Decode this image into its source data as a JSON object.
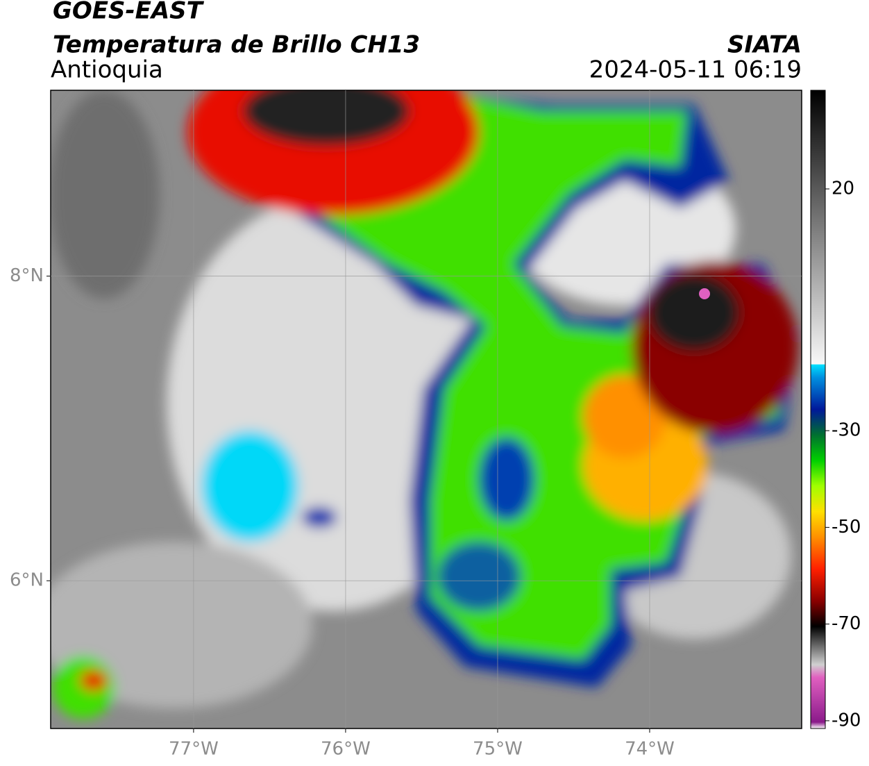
{
  "header": {
    "title": "GOES-EAST",
    "subtitle": "Temperatura de Brillo CH13",
    "region": "Antioquia",
    "agency": "SIATA",
    "timestamp": "2024-05-11 06:19"
  },
  "map": {
    "xlim": [
      -77.94,
      -73.0
    ],
    "ylim": [
      5.03,
      9.22
    ],
    "xticks": [
      {
        "value": -77,
        "label": "77°W"
      },
      {
        "value": -76,
        "label": "76°W"
      },
      {
        "value": -75,
        "label": "75°W"
      },
      {
        "value": -74,
        "label": "74°W"
      }
    ],
    "yticks": [
      {
        "value": 8,
        "label": "8°N"
      },
      {
        "value": 6,
        "label": "6°N"
      }
    ],
    "grid": true
  },
  "colorbar": {
    "lim": [
      -91.6,
      40.4
    ],
    "ticks": [
      20,
      -30,
      -50,
      -70,
      -90
    ]
  }
}
